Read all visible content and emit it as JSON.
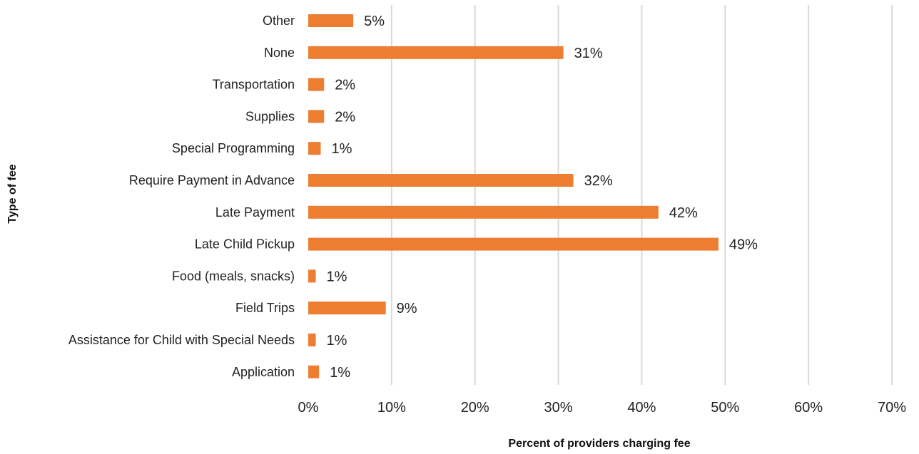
{
  "chart_data": {
    "type": "bar",
    "orientation": "horizontal",
    "categories": [
      "Other",
      "None",
      "Transportation",
      "Supplies",
      "Special Programming",
      "Require Payment in Advance",
      "Late Payment",
      "Late Child Pickup",
      "Food (meals, snacks)",
      "Field Trips",
      "Assistance for Child with Special Needs",
      "Application"
    ],
    "values": [
      5.4,
      30.6,
      1.9,
      1.9,
      1.5,
      31.8,
      42.0,
      49.2,
      0.9,
      9.3,
      0.9,
      1.3
    ],
    "value_labels": [
      "5%",
      "31%",
      "2%",
      "2%",
      "1%",
      "32%",
      "42%",
      "49%",
      "1%",
      "9%",
      "1%",
      "1%"
    ],
    "x_ticks": [
      0,
      10,
      20,
      30,
      40,
      50,
      60,
      70
    ],
    "x_tick_labels": [
      "0%",
      "10%",
      "20%",
      "30%",
      "40%",
      "50%",
      "60%",
      "70%"
    ],
    "xlim": [
      0,
      70
    ],
    "xlabel": "Percent of providers charging fee",
    "ylabel": "Type of fee",
    "grid": "vertical",
    "bar_color": "#ED7D31"
  }
}
